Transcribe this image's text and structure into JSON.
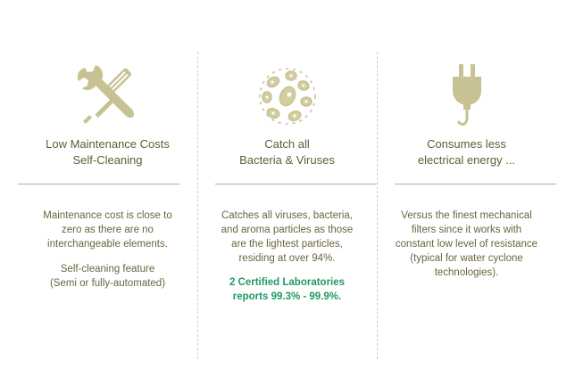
{
  "colors": {
    "text": "#6b653d",
    "icon": "#c7c293",
    "highlight": "#1f9a63",
    "rule": "#b5b299"
  },
  "features": [
    {
      "icon": "tools-icon",
      "title_lines": [
        "Low Maintenance Costs",
        "Self-Cleaning"
      ],
      "desc_lines": [
        "Maintenance cost is close to",
        "zero as there are no",
        "interchangeable elements."
      ],
      "extra_lines": [
        "Self-cleaning feature",
        "(Semi or fully-automated)"
      ]
    },
    {
      "icon": "bacteria-icon",
      "title_lines": [
        "Catch all",
        "Bacteria & Viruses"
      ],
      "desc_lines": [
        "Catches all viruses, bacteria,",
        "and aroma particles as those",
        "are the lightest particles,",
        "residing at over 94%."
      ],
      "highlight_lines": [
        "2 Certified Laboratories",
        "reports 99.3% - 99.9%."
      ]
    },
    {
      "icon": "plug-icon",
      "title_lines": [
        "Consumes less",
        "electrical energy ..."
      ],
      "desc_lines": [
        "Versus the finest mechanical",
        "filters since it works with",
        "constant low level of resistance",
        "(typical for water cyclone",
        "technologies)."
      ]
    }
  ]
}
